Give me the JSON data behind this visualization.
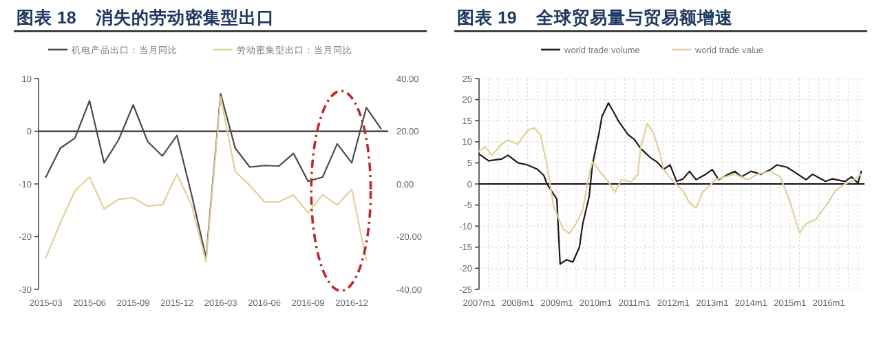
{
  "chart_data": [
    {
      "type": "line",
      "title": "图表 18    消失的劳动密集型出口",
      "categories": [
        "2015-03",
        null,
        null,
        "2015-06",
        null,
        null,
        "2015-09",
        null,
        null,
        "2015-12",
        null,
        null,
        "2016-03",
        null,
        null,
        "2016-06",
        null,
        null,
        "2016-09",
        null,
        null,
        "2016-12",
        null,
        null
      ],
      "series": [
        {
          "name": "机电产品出口：当月同比",
          "color": "#4a4a4a",
          "values": [
            -8.7,
            -3.2,
            -1.3,
            5.8,
            -6,
            -1.6,
            5,
            -2,
            -4.7,
            -0.8,
            -12,
            -24,
            7.1,
            -3.2,
            -6.8,
            -6.5,
            -6.6,
            -4.2,
            -9.5,
            -8.7,
            -2.4,
            -6,
            4.5,
            0.5
          ]
        },
        {
          "name": "劳动密集型出口：当月同比",
          "color": "#e3cf9a",
          "axis": "y2",
          "values": [
            -28,
            -14.7,
            -2.6,
            2.6,
            -9.5,
            -5.8,
            -5.3,
            -8.4,
            -7.9,
            3.7,
            -8,
            -29.5,
            33,
            4.7,
            -0.5,
            -6.8,
            -6.8,
            -4.2,
            -11,
            -4,
            -8,
            -2,
            -29,
            null
          ]
        }
      ],
      "ylim": [
        -30,
        10
      ],
      "yticks": [
        -30,
        -20,
        -10,
        0,
        10
      ],
      "y2lim": [
        -40,
        40
      ],
      "y2ticks": [
        {
          "value": -40,
          "label": "-40.00"
        },
        {
          "value": -20,
          "label": "-20.00"
        },
        {
          "value": 0,
          "label": "0.00"
        },
        {
          "value": 20,
          "label": "20.00"
        },
        {
          "value": 40,
          "label": "40.00"
        }
      ],
      "legend": "top",
      "grid": false,
      "ref_lines": [
        {
          "axis": "y",
          "value": 0,
          "color": "#222222"
        }
      ]
    },
    {
      "type": "line",
      "title": "图表 19    全球贸易量与贸易额增速",
      "series": [
        {
          "name": "world trade volume",
          "color": "#1a1a1a",
          "x": [
            "2007-01",
            "2007-04",
            "2007-08",
            "2007-10",
            "2008-01",
            "2008-04",
            "2008-07",
            "2008-09",
            "2008-10",
            "2009-01",
            "2009-02",
            "2009-04",
            "2009-06",
            "2009-08",
            "2009-09",
            "2009-11",
            "2009-12",
            "2010-02",
            "2010-03",
            "2010-05",
            "2010-07",
            "2010-08",
            "2010-11",
            "2011-01",
            "2011-03",
            "2011-06",
            "2011-08",
            "2011-10",
            "2011-12",
            "2012-02",
            "2012-04",
            "2012-06",
            "2012-08",
            "2012-11",
            "2013-01",
            "2013-03",
            "2013-06",
            "2013-08",
            "2013-10",
            "2014-01",
            "2014-04",
            "2014-07",
            "2014-09",
            "2014-12",
            "2015-02",
            "2015-06",
            "2015-08",
            "2015-12",
            "2016-02",
            "2016-06",
            "2016-08",
            "2016-10",
            "2016-11"
          ],
          "values": [
            7.1,
            5.5,
            5.9,
            6.8,
            5,
            4.5,
            3.5,
            2,
            0,
            -3.6,
            -19,
            -18,
            -18.5,
            -15,
            -9.5,
            -3,
            4.5,
            12,
            16,
            19.2,
            16.5,
            15,
            11.7,
            10.5,
            8.4,
            6.2,
            5.2,
            3.5,
            4.5,
            0.6,
            1.2,
            3,
            1,
            2.3,
            3.4,
            1,
            2.3,
            3,
            1.7,
            3,
            2.3,
            3.4,
            4.5,
            4,
            3,
            1,
            2.3,
            0.6,
            1.2,
            0.6,
            1.7,
            0.2,
            3
          ]
        },
        {
          "name": "world trade value",
          "color": "#e3cf9a",
          "x": [
            "2007-01",
            "2007-03",
            "2007-05",
            "2007-08",
            "2007-10",
            "2008-01",
            "2008-04",
            "2008-06",
            "2008-08",
            "2008-10",
            "2008-12",
            "2009-03",
            "2009-05",
            "2009-07",
            "2009-09",
            "2009-11",
            "2009-12",
            "2010-05",
            "2010-07",
            "2010-09",
            "2010-12",
            "2011-02",
            "2011-03",
            "2011-05",
            "2011-07",
            "2011-09",
            "2011-10",
            "2012-01",
            "2012-04",
            "2012-06",
            "2012-08",
            "2012-10",
            "2013-02",
            "2013-05",
            "2013-08",
            "2013-12",
            "2014-03",
            "2014-07",
            "2014-10",
            "2015-01",
            "2015-04",
            "2015-06",
            "2015-09",
            "2016-01",
            "2016-03",
            "2016-06",
            "2016-08",
            "2016-11"
          ],
          "values": [
            7.8,
            8.8,
            6.8,
            9.4,
            10.4,
            9.4,
            12.7,
            13.3,
            11.7,
            4.4,
            -5.2,
            -10.7,
            -11.7,
            -9.4,
            -6.2,
            2.3,
            5.2,
            0.5,
            -2,
            1,
            0.5,
            2.3,
            8.8,
            14.3,
            12,
            6.8,
            3.4,
            0.6,
            -1.6,
            -4.5,
            -5.7,
            -2,
            1,
            1.7,
            2.3,
            1,
            2.3,
            3,
            1.7,
            -4.2,
            -11.7,
            -9.4,
            -8.4,
            -4.2,
            -1.6,
            0,
            0.6,
            2.3
          ]
        }
      ],
      "xlim": [
        "2007-01",
        "2016-12"
      ],
      "xticks": [
        {
          "value": "2007-01",
          "label": "2007m1"
        },
        {
          "value": "2008-01",
          "label": "2008m1"
        },
        {
          "value": "2009-01",
          "label": "2009m1"
        },
        {
          "value": "2010-01",
          "label": "2010m1"
        },
        {
          "value": "2011-01",
          "label": "2011m1"
        },
        {
          "value": "2012-01",
          "label": "2012m1"
        },
        {
          "value": "2013-01",
          "label": "2013m1"
        },
        {
          "value": "2014-01",
          "label": "2014m1"
        },
        {
          "value": "2015-01",
          "label": "2015m1"
        },
        {
          "value": "2016-01",
          "label": "2016m1"
        }
      ],
      "ylim": [
        -25,
        25
      ],
      "yticks": [
        -25,
        -20,
        -15,
        -10,
        -5,
        0,
        5,
        10,
        15,
        20,
        25
      ],
      "legend": "top",
      "grid": true,
      "ref_lines": [
        {
          "axis": "y",
          "value": 0,
          "color": "#111111"
        }
      ]
    }
  ]
}
